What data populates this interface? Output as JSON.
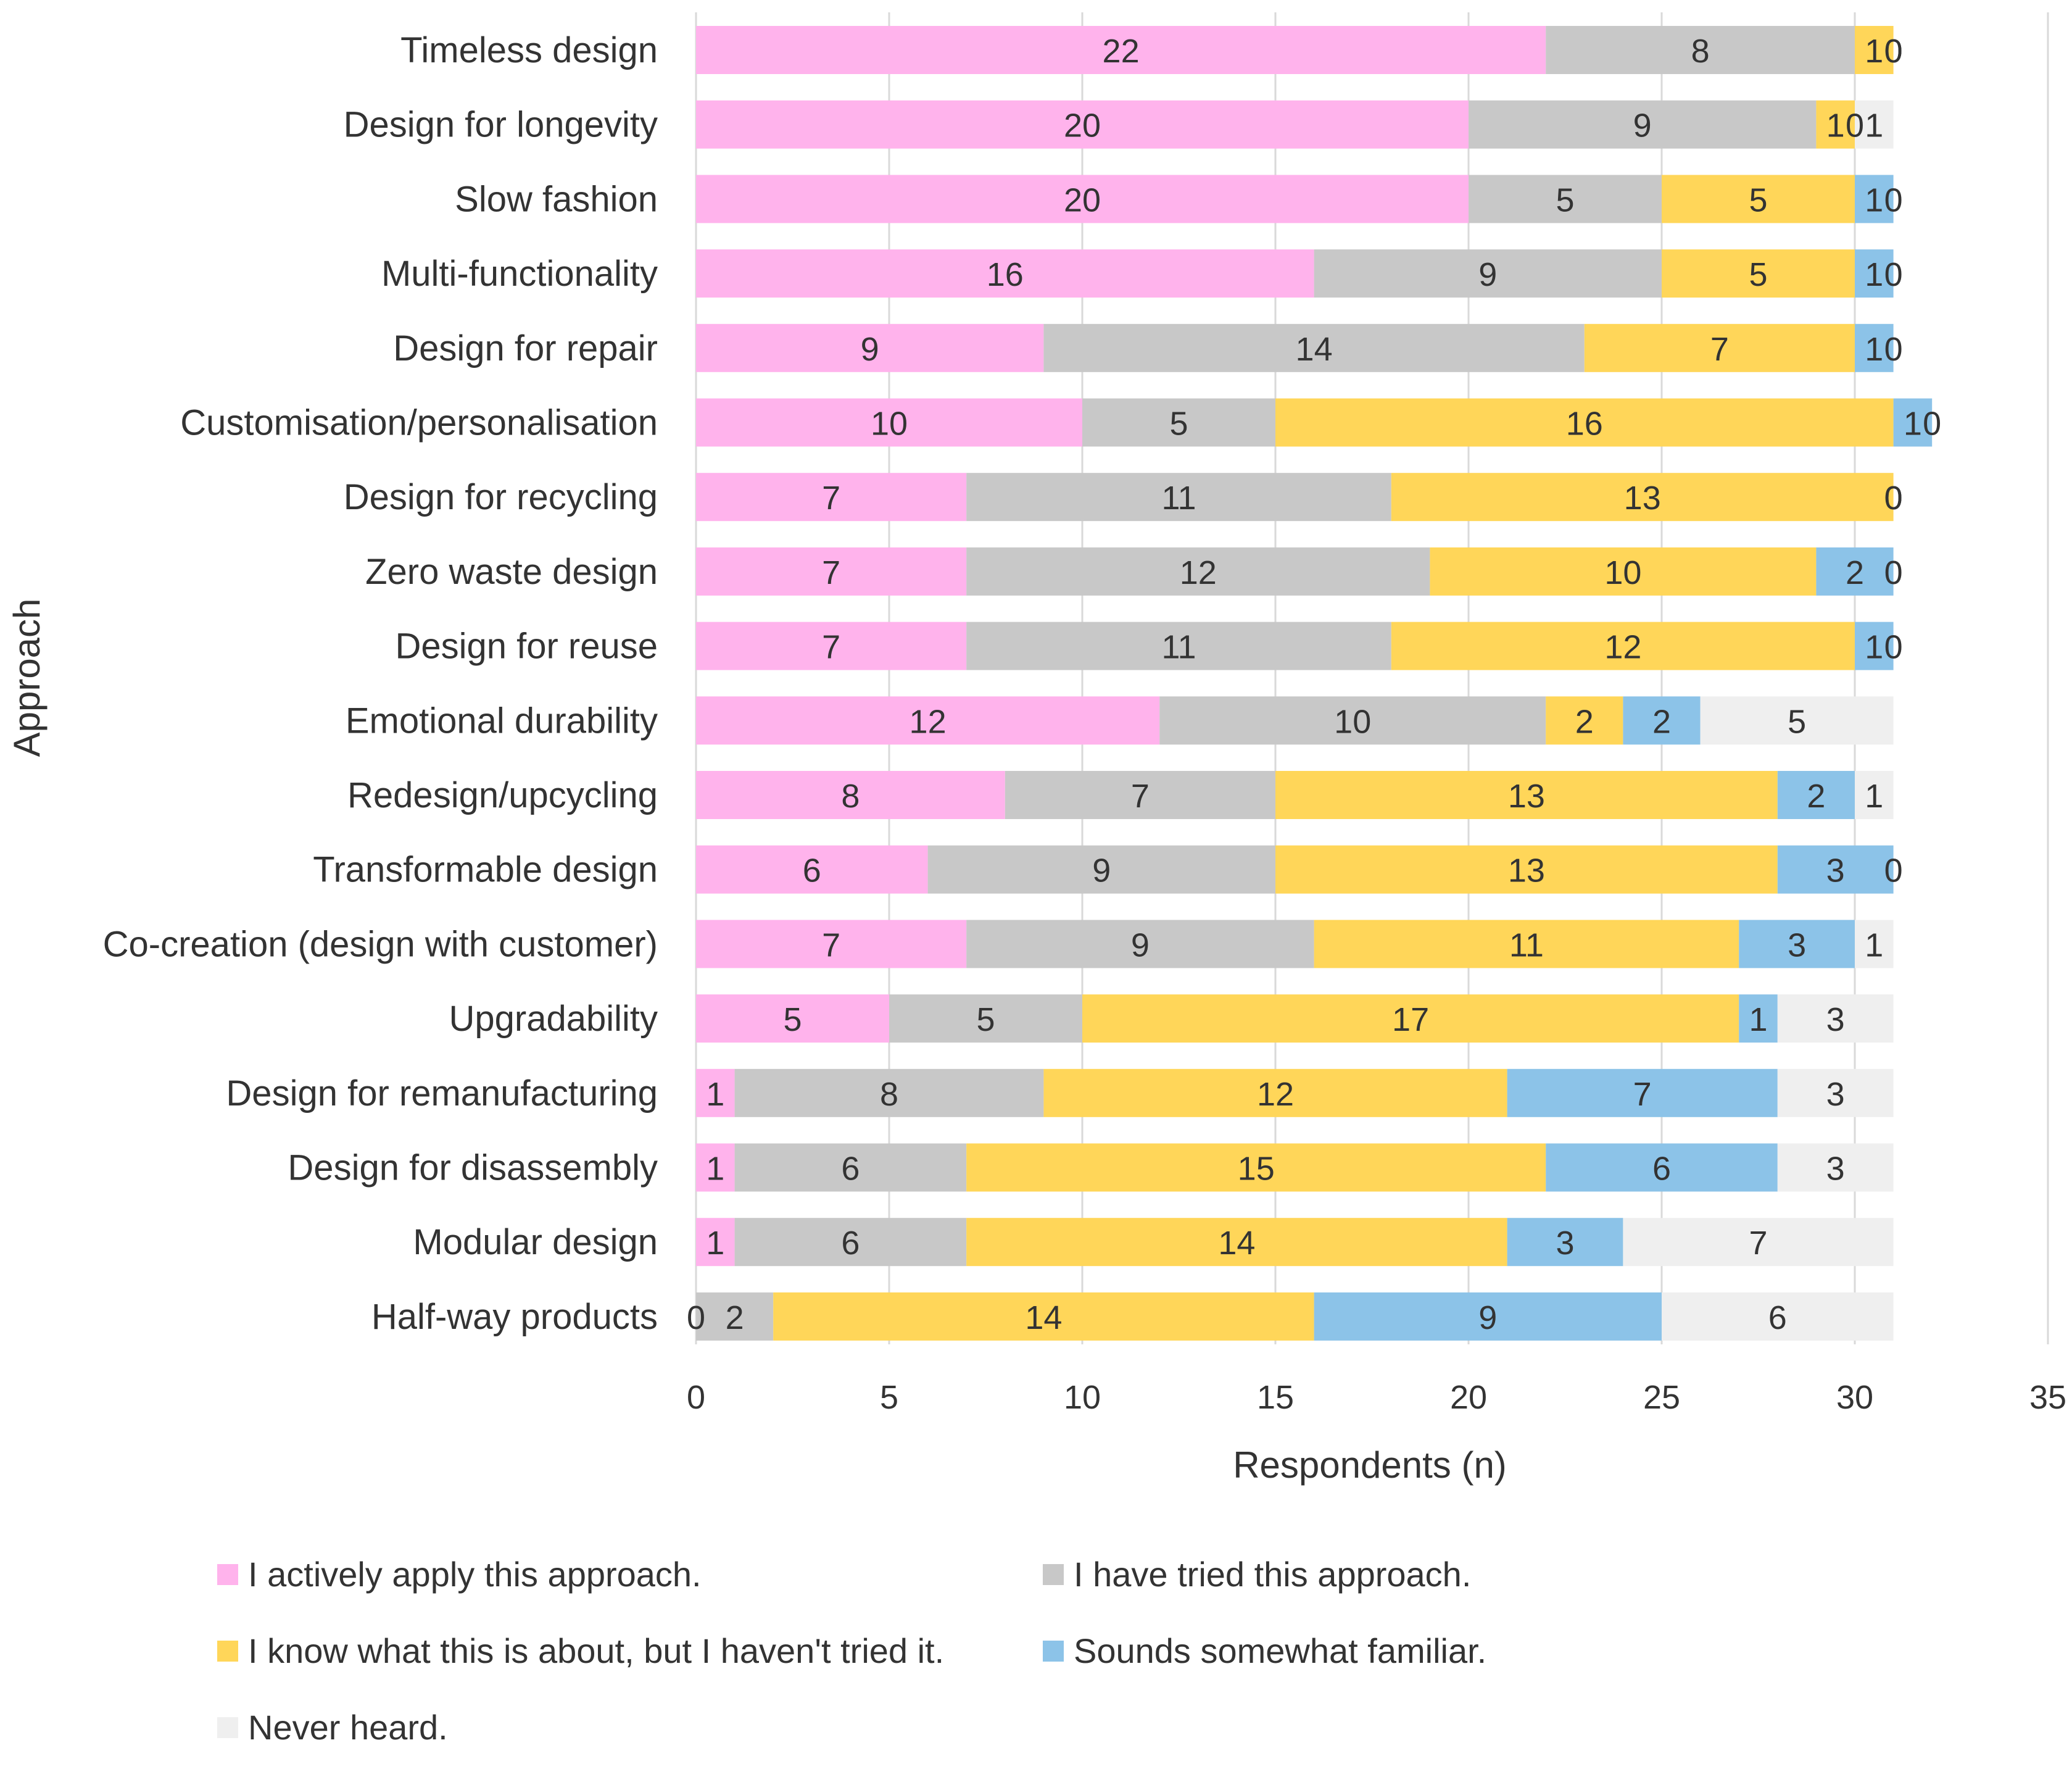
{
  "chart_data": {
    "type": "bar",
    "orientation": "horizontal",
    "stacked": true,
    "title": "",
    "xlabel": "Respondents (n)",
    "ylabel": "Approach",
    "xlim": [
      0,
      35
    ],
    "xticks": [
      0,
      5,
      10,
      15,
      20,
      25,
      30,
      35
    ],
    "grid": true,
    "legend_position": "bottom",
    "categories": [
      "Timeless design",
      "Design for longevity",
      "Slow fashion",
      "Multi-functionality",
      "Design for repair",
      "Customisation/personalisation",
      "Design for recycling",
      "Zero waste design",
      "Design for reuse",
      "Emotional durability",
      "Redesign/upcycling",
      "Transformable design",
      "Co-creation (design with customer)",
      "Upgradability",
      "Design for remanufacturing",
      "Design for disassembly",
      "Modular design",
      "Half-way products"
    ],
    "series": [
      {
        "name": "I actively apply this approach.",
        "color": "#ffb3ec",
        "values": [
          22,
          20,
          20,
          16,
          9,
          10,
          7,
          7,
          7,
          12,
          8,
          6,
          7,
          5,
          1,
          1,
          1,
          0
        ]
      },
      {
        "name": "I have tried this approach.",
        "color": "#c8c8c8",
        "values": [
          8,
          9,
          5,
          9,
          14,
          5,
          11,
          12,
          11,
          10,
          7,
          9,
          9,
          5,
          8,
          6,
          6,
          2
        ]
      },
      {
        "name": "I know what this is about, but I haven't tried it.",
        "color": "#ffd659",
        "values": [
          1,
          1,
          5,
          5,
          7,
          16,
          13,
          10,
          12,
          2,
          13,
          13,
          11,
          17,
          12,
          15,
          14,
          14
        ]
      },
      {
        "name": "Sounds somewhat familiar.",
        "color": "#8cc3e8",
        "values": [
          0,
          0,
          1,
          1,
          1,
          1,
          0,
          2,
          1,
          2,
          2,
          3,
          3,
          1,
          7,
          6,
          3,
          9
        ]
      },
      {
        "name": "Never heard.",
        "color": "#efefef",
        "values": [
          0,
          1,
          0,
          0,
          0,
          0,
          0,
          0,
          0,
          5,
          1,
          0,
          1,
          3,
          3,
          3,
          7,
          6
        ]
      }
    ]
  }
}
